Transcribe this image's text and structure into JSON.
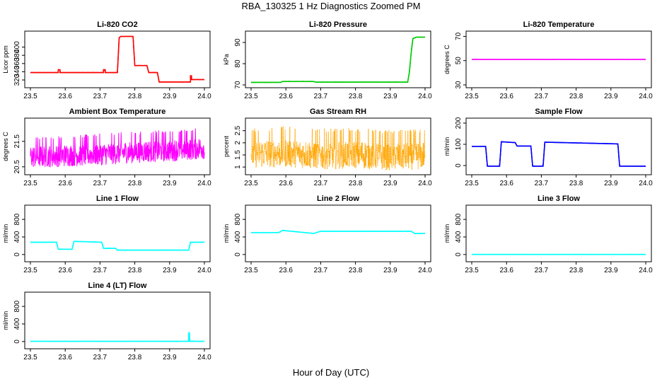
{
  "figure": {
    "title": "RBA_130325  1 Hz Diagnostics Zoomed PM",
    "xlabel": "Hour of Day (UTC)"
  },
  "chart_data": [
    {
      "type": "line",
      "title": "Li-820 CO2",
      "ylabel": "Licor ppm",
      "color": "#ff0000",
      "xlim": [
        23.5,
        24.0
      ],
      "ylim": [
        308,
        432
      ],
      "xticks": [
        "23.5",
        "23.6",
        "23.7",
        "23.8",
        "23.9",
        "24.0"
      ],
      "yticks": [
        320,
        340,
        360,
        380,
        400
      ],
      "x": [
        23.5,
        23.58,
        23.58,
        23.585,
        23.585,
        23.71,
        23.71,
        23.715,
        23.715,
        23.75,
        23.755,
        23.76,
        23.795,
        23.8,
        23.835,
        23.84,
        23.865,
        23.87,
        23.96,
        23.96,
        23.963,
        23.963,
        24.0
      ],
      "y": [
        338,
        338,
        345,
        345,
        338,
        338,
        345,
        345,
        338,
        338,
        423,
        426,
        426,
        355,
        355,
        338,
        338,
        315,
        315,
        330,
        330,
        321,
        321
      ]
    },
    {
      "type": "line",
      "title": "Li-820 Pressure",
      "ylabel": "kPa",
      "color": "#00cc00",
      "xlim": [
        23.5,
        24.0
      ],
      "ylim": [
        70,
        94
      ],
      "xticks": [
        "23.5",
        "23.6",
        "23.7",
        "23.8",
        "23.9",
        "24.0"
      ],
      "yticks": [
        70,
        80,
        90
      ],
      "x": [
        23.5,
        23.585,
        23.59,
        23.68,
        23.685,
        23.95,
        23.955,
        23.96,
        23.965,
        23.975,
        24.0
      ],
      "y": [
        71.2,
        71.2,
        71.6,
        71.6,
        71.3,
        71.3,
        76,
        85,
        91.8,
        92.5,
        92.5
      ]
    },
    {
      "type": "line",
      "title": "Li-820 Temperature",
      "ylabel": "degrees C",
      "color": "#ff00ff",
      "xlim": [
        23.5,
        24.0
      ],
      "ylim": [
        30,
        72
      ],
      "xticks": [
        "23.5",
        "23.6",
        "23.7",
        "23.8",
        "23.9",
        "24.0"
      ],
      "yticks": [
        30,
        50,
        70
      ],
      "x": [
        23.5,
        24.0
      ],
      "y": [
        51,
        51
      ]
    },
    {
      "type": "line",
      "title": "Ambient Box Temperature",
      "ylabel": "degrees C",
      "color": "#ff00ff",
      "xlim": [
        23.5,
        24.0
      ],
      "ylim": [
        20.3,
        22.3
      ],
      "xticks": [
        "23.5",
        "23.6",
        "23.7",
        "23.8",
        "23.9",
        "24.0"
      ],
      "yticks": [
        20.5,
        21.5
      ],
      "x": [
        23.5,
        23.6,
        23.7,
        23.8,
        23.9,
        24.0
      ],
      "y": [
        20.9,
        20.95,
        21.0,
        21.1,
        21.15,
        21.25
      ]
    },
    {
      "type": "line",
      "title": "Gas Stream RH",
      "ylabel": "percent",
      "color": "#ffa500",
      "xlim": [
        23.5,
        24.0
      ],
      "ylim": [
        0.8,
        2.9
      ],
      "xticks": [
        "23.5",
        "23.6",
        "23.7",
        "23.8",
        "23.9",
        "24.0"
      ],
      "yticks": [
        1.0,
        1.5,
        2.0,
        2.5
      ],
      "x": [
        23.5,
        23.6,
        23.7,
        23.8,
        23.9,
        24.0
      ],
      "y": [
        1.55,
        1.6,
        1.5,
        1.55,
        1.45,
        1.5
      ]
    },
    {
      "type": "line",
      "title": "Sample Flow",
      "ylabel": "ml/min",
      "color": "#0000ff",
      "xlim": [
        23.5,
        24.0
      ],
      "ylim": [
        -30,
        210
      ],
      "xticks": [
        "23.5",
        "23.6",
        "23.7",
        "23.8",
        "23.9",
        "24.0"
      ],
      "yticks": [
        0,
        100,
        200
      ],
      "x": [
        23.5,
        23.54,
        23.545,
        23.58,
        23.585,
        23.625,
        23.63,
        23.67,
        23.675,
        23.705,
        23.71,
        23.92,
        23.925,
        24.0
      ],
      "y": [
        90,
        90,
        -3,
        -3,
        112,
        108,
        92,
        92,
        -3,
        -3,
        110,
        102,
        -3,
        -3
      ]
    },
    {
      "type": "line",
      "title": "Line 1 Flow",
      "ylabel": "ml/min",
      "color": "#00ffff",
      "xlim": [
        23.5,
        24.0
      ],
      "ylim": [
        -100,
        1060
      ],
      "xticks": [
        "23.5",
        "23.6",
        "23.7",
        "23.8",
        "23.9",
        "24.0"
      ],
      "yticks": [
        0,
        400,
        800
      ],
      "x": [
        23.5,
        23.575,
        23.58,
        23.62,
        23.625,
        23.705,
        23.71,
        23.745,
        23.75,
        23.955,
        23.96,
        24.0
      ],
      "y": [
        280,
        280,
        120,
        120,
        300,
        280,
        140,
        140,
        100,
        100,
        280,
        280
      ]
    },
    {
      "type": "line",
      "title": "Line 2 Flow",
      "ylabel": "ml/min",
      "color": "#00ffff",
      "xlim": [
        23.5,
        24.0
      ],
      "ylim": [
        -100,
        1060
      ],
      "xticks": [
        "23.5",
        "23.6",
        "23.7",
        "23.8",
        "23.9",
        "24.0"
      ],
      "yticks": [
        0,
        400,
        800
      ],
      "x": [
        23.5,
        23.58,
        23.59,
        23.68,
        23.7,
        23.96,
        23.97,
        24.0
      ],
      "y": [
        500,
        500,
        550,
        480,
        530,
        530,
        480,
        480
      ]
    },
    {
      "type": "line",
      "title": "Line 3 Flow",
      "ylabel": "ml/min",
      "color": "#00ffff",
      "xlim": [
        23.5,
        24.0
      ],
      "ylim": [
        -100,
        1060
      ],
      "xticks": [
        "23.5",
        "23.6",
        "23.7",
        "23.8",
        "23.9",
        "24.0"
      ],
      "yticks": [
        0,
        400,
        800
      ],
      "x": [
        23.5,
        24.0
      ],
      "y": [
        2,
        2
      ]
    },
    {
      "type": "line",
      "title": "Line 4 (LT) Flow",
      "ylabel": "ml/min",
      "color": "#00ffff",
      "xlim": [
        23.5,
        24.0
      ],
      "ylim": [
        -100,
        1060
      ],
      "xticks": [
        "23.5",
        "23.6",
        "23.7",
        "23.8",
        "23.9",
        "24.0"
      ],
      "yticks": [
        0,
        400,
        800
      ],
      "x": [
        23.5,
        23.955,
        23.955,
        23.957,
        23.957,
        24.0
      ],
      "y": [
        5,
        5,
        200,
        200,
        5,
        5
      ]
    }
  ]
}
